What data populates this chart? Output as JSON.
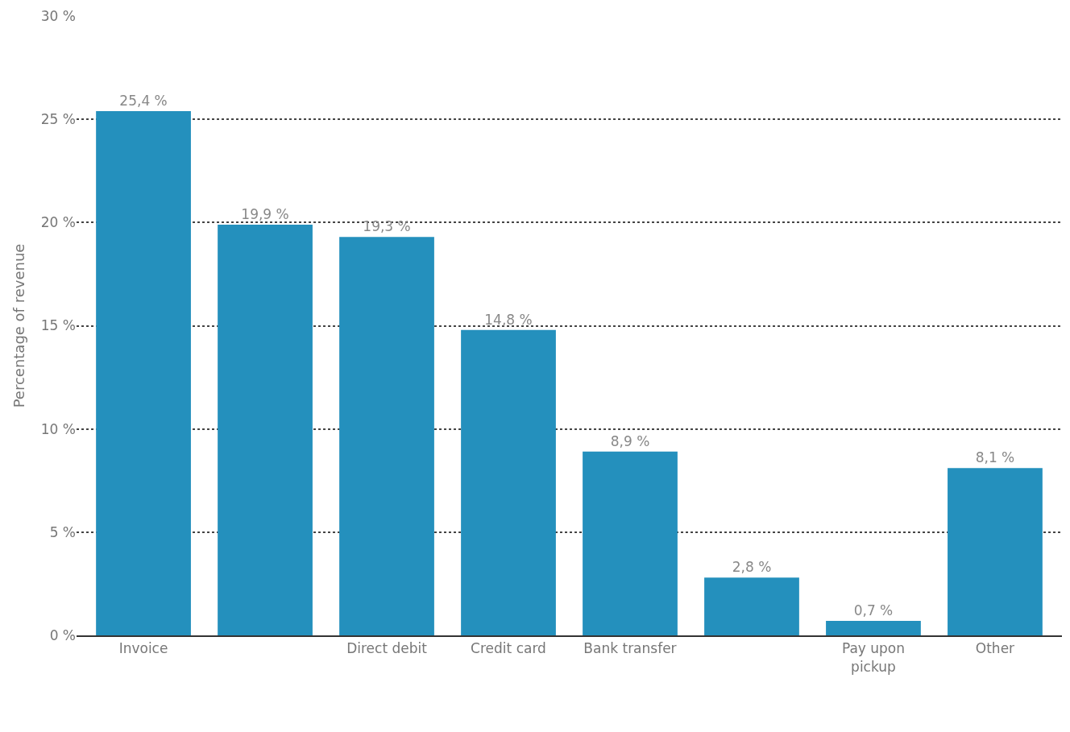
{
  "chart_data": {
    "type": "bar",
    "ylabel": "Percentage of revenue",
    "categories": [
      "Invoice",
      null,
      "Direct debit",
      "Credit card",
      "Bank transfer",
      null,
      "Pay upon pickup",
      "Other"
    ],
    "values": [
      25.4,
      19.9,
      19.3,
      14.8,
      8.9,
      2.8,
      0.7,
      8.1
    ],
    "value_labels": [
      "25,4 %",
      "19,9 %",
      "19,3 %",
      "14,8 %",
      "8,9 %",
      "2,8 %",
      "0,7 %",
      "8,1 %"
    ],
    "color": "#2490bd",
    "ylim": [
      0,
      30
    ],
    "yticks": [
      {
        "value": 0,
        "label": "0 %"
      },
      {
        "value": 5,
        "label": "5 %"
      },
      {
        "value": 10,
        "label": "10 %"
      },
      {
        "value": 15,
        "label": "15 %"
      },
      {
        "value": 20,
        "label": "20 %"
      },
      {
        "value": 25,
        "label": "25 %"
      },
      {
        "value": 30,
        "label": "30 %"
      }
    ],
    "grid": "y"
  }
}
